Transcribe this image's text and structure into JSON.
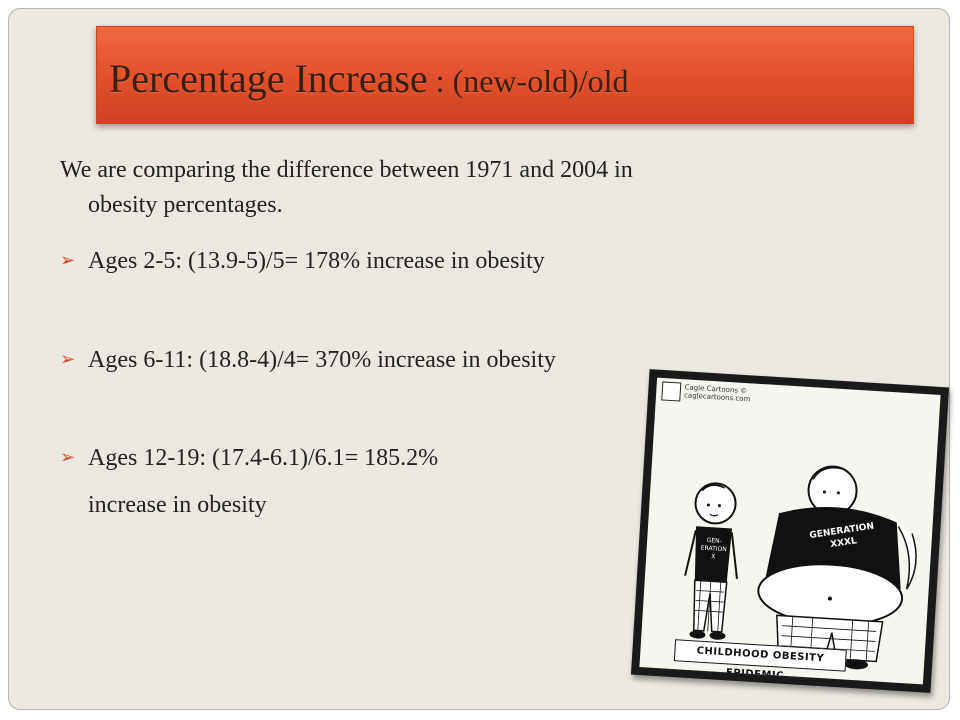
{
  "slide": {
    "title": "Percentage Increase",
    "title_sub": ": (new-old)/old",
    "intro_line1": "We are comparing the difference between 1971 and 2004 in",
    "intro_line2": "obesity percentages.",
    "bullets": [
      "Ages 2-5:  (13.9-5)/5= 178% increase in obesity",
      "Ages 6-11: (18.8-4)/4= 370% increase in obesity",
      "Ages 12-19: (17.4-6.1)/6.1= 185.2%"
    ],
    "bullet3_cont": "increase in obesity",
    "bullet_icon": "arrowhead-bullet-icon"
  },
  "cartoon": {
    "credit_line1": "Cagle Cartoons ©",
    "credit_line2": "caglecartoons.com",
    "small_shirt": "GEN-ERATION X",
    "big_shirt": "GENERATION XXXL",
    "caption": "CHILDHOOD OBESITY EPIDEMIC.."
  },
  "colors": {
    "title_bar": "#e1502b",
    "background": "#ebe8e1",
    "bullet_arrow": "#d84c24"
  }
}
